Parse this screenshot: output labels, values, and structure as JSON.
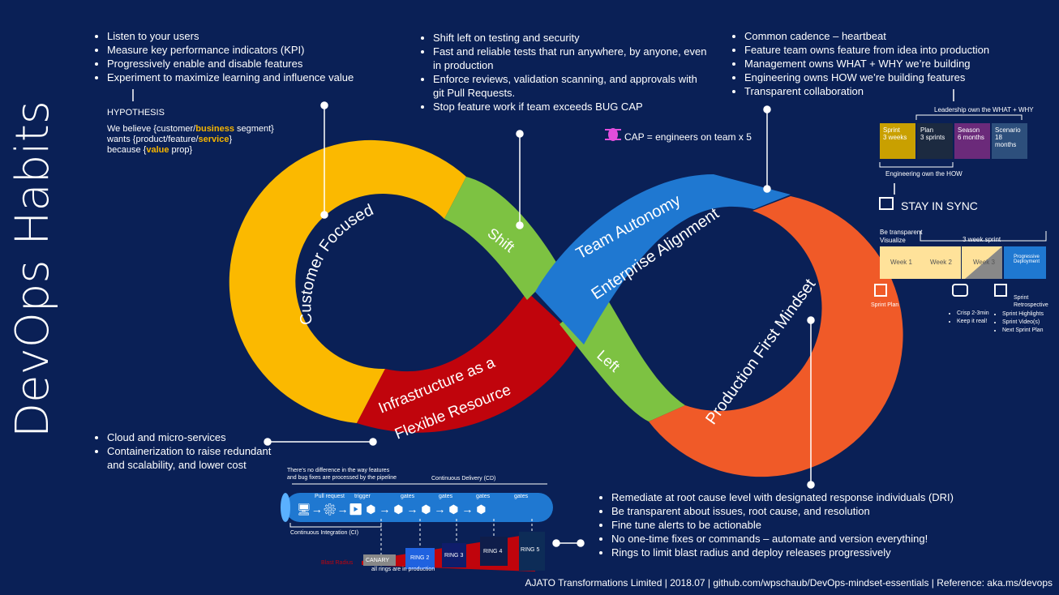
{
  "title": "DevOps Habits",
  "customer_focused": {
    "label": "Customer Focused",
    "bullets": [
      "Listen to your users",
      "Measure key performance indicators (KPI)",
      "Progressively enable and disable features",
      "Experiment to maximize learning and influence value"
    ],
    "hypothesis_label": "HYPOTHESIS",
    "hypothesis": {
      "l1a": "We believe {customer/",
      "l1b": "business",
      "l1c": " segment}",
      "l2a": "wants {product/feature/",
      "l2b": "service",
      "l2c": "}",
      "l3a": "because {",
      "l3b": "value",
      "l3c": " prop}"
    }
  },
  "shift_left": {
    "label_shift": "Shift",
    "label_left": "Left",
    "bullets": [
      "Shift left on testing and security",
      "Fast and reliable tests that run anywhere, by anyone, even in production",
      "Enforce reviews, validation scanning, and approvals with git Pull Requests.",
      "Stop feature work if team exceeds BUG CAP"
    ],
    "cap_note": "CAP = engineers on team  x 5"
  },
  "team_autonomy": {
    "label1": "Team Autonomy",
    "label2": "Enterprise Alignment",
    "bullets": [
      "Common cadence – heartbeat",
      "Feature team owns feature from idea into production",
      "Management owns WHAT + WHY we’re building",
      "Engineering owns HOW we’re building features",
      "Transparent collaboration"
    ]
  },
  "cadence": {
    "leadership": "Leadership own the WHAT + WHY",
    "engineering": "Engineering own the HOW",
    "boxes": [
      {
        "t1": "Sprint",
        "t2": "3 weeks",
        "color": "#c9a000"
      },
      {
        "t1": "Plan",
        "t2": "3 sprints",
        "color": "#1c2a40"
      },
      {
        "t1": "Season",
        "t2": "6 months",
        "color": "#6b2a7a"
      },
      {
        "t1": "Scenario",
        "t2": "18 months",
        "color": "#2d4f7c"
      }
    ],
    "stay_in_sync": "STAY IN SYNC",
    "be_transparent": "Be transparent",
    "visualize": "Visualize",
    "sprint_label": "3 week sprint",
    "weeks": [
      "Week 1",
      "Week 2",
      "Week 3"
    ],
    "progressive": [
      "Progressive",
      "Deployment"
    ],
    "sprint_plan": "Sprint Plan",
    "video_notes": [
      "Crisp 2-3min",
      "Keep it real!"
    ],
    "retro_title": [
      "Sprint",
      "Retrospective"
    ],
    "retro_items": [
      "Sprint Highlights",
      "Sprint Video(s)",
      "Next Sprint Plan"
    ]
  },
  "infrastructure": {
    "label1": "Infrastructure as a",
    "label2": "Flexible Resource",
    "bullets": [
      "Cloud and micro-services",
      "Containerization to raise redundant and scalability, and lower cost"
    ]
  },
  "pipeline": {
    "note1": "There’s no difference in the way features",
    "note2": "and bug fixes are processed by the pipeline",
    "cd": "Continuous Delivery (CD)",
    "ci": "Continuous Integration (CI)",
    "pull_request": "Pull request",
    "trigger": "trigger",
    "gates": "gates",
    "rings": [
      "CANARY",
      "RING 2",
      "RING 3",
      "RING 4",
      "RING 5"
    ],
    "blast": "Blast Radius",
    "all_rings": "all rings are in production"
  },
  "production_first": {
    "label": "Production First Mindset",
    "bullets": [
      "Remediate at root cause level with designated response individuals (DRI)",
      "Be transparent about issues, root cause, and resolution",
      "Fine tune alerts to be actionable",
      "No one-time fixes or commands – automate and version everything!",
      "Rings to limit blast radius and deploy releases progressively"
    ]
  },
  "footer": "AJATO Transformations Limited | 2018.07 | github.com/wpschaub/DevOps-mindset-essentials | Reference: aka.ms/devops",
  "colors": {
    "bg": "#0a2056",
    "yellow": "#fbb900",
    "green": "#7dc242",
    "blue": "#1f78d1",
    "red": "#c0040c",
    "orange": "#f05a28"
  }
}
